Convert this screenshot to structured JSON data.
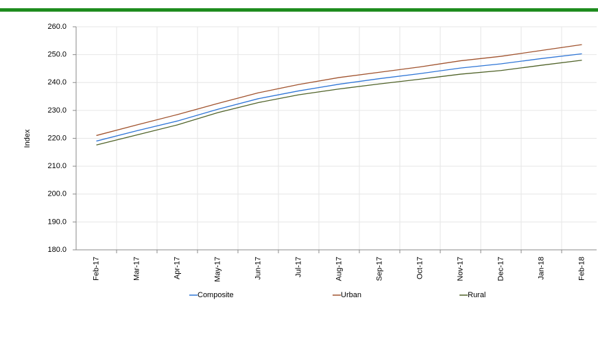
{
  "chart_data": {
    "type": "line",
    "y_label": "Index",
    "categories": [
      "Feb-17",
      "Mar-17",
      "Apr-17",
      "May-17",
      "Jun-17",
      "Jul-17",
      "Aug-17",
      "Sep-17",
      "Oct-17",
      "Nov-17",
      "Dec-17",
      "Jan-18",
      "Feb-18"
    ],
    "series": [
      {
        "name": "Composite",
        "color": "#2e75d6",
        "values": [
          219.0,
          222.7,
          226.2,
          230.4,
          234.2,
          237.0,
          239.4,
          241.4,
          243.2,
          245.2,
          246.7,
          248.6,
          250.3
        ]
      },
      {
        "name": "Urban",
        "color": "#a0522d",
        "values": [
          221.0,
          224.8,
          228.5,
          232.5,
          236.3,
          239.3,
          241.8,
          243.7,
          245.6,
          247.8,
          249.4,
          251.5,
          253.6
        ]
      },
      {
        "name": "Rural",
        "color": "#4f6228",
        "values": [
          217.6,
          221.2,
          224.8,
          229.2,
          232.8,
          235.6,
          237.7,
          239.5,
          241.2,
          243.0,
          244.3,
          246.2,
          248.0
        ]
      }
    ],
    "ylim": [
      180,
      260
    ],
    "yticks": [
      {
        "value": 180,
        "label": "180.0"
      },
      {
        "value": 190,
        "label": "190.0"
      },
      {
        "value": 200,
        "label": "200.0"
      },
      {
        "value": 210,
        "label": "210.0"
      },
      {
        "value": 220,
        "label": "220.0"
      },
      {
        "value": 230,
        "label": "230.0"
      },
      {
        "value": 240,
        "label": "240.0"
      },
      {
        "value": 250,
        "label": "250.0"
      },
      {
        "value": 260,
        "label": "260.0"
      }
    ],
    "grid": true
  }
}
